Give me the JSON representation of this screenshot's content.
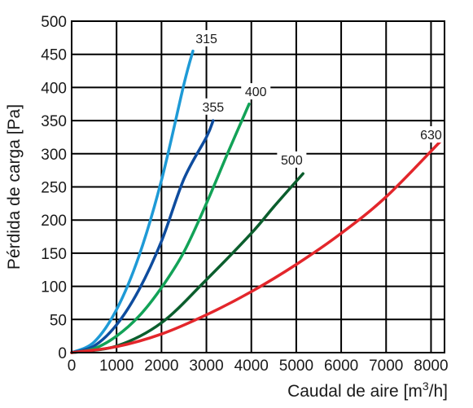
{
  "chart_data": {
    "type": "line",
    "xlabel": "Caudal de aire [m³/h]",
    "ylabel": "Pérdida de carga  [Pa]",
    "xlim": [
      0,
      8300
    ],
    "ylim": [
      0,
      500
    ],
    "x_ticks": [
      0,
      1000,
      2000,
      3000,
      4000,
      5000,
      6000,
      7000,
      8000
    ],
    "y_ticks": [
      0,
      50,
      100,
      150,
      200,
      250,
      300,
      350,
      400,
      450,
      500
    ],
    "grid": true,
    "series": [
      {
        "name": "315",
        "color": "#1e9ad6",
        "points": [
          [
            0,
            0
          ],
          [
            500,
            16
          ],
          [
            1000,
            65
          ],
          [
            1500,
            146
          ],
          [
            2000,
            260
          ],
          [
            2500,
            405
          ],
          [
            2700,
            455
          ]
        ]
      },
      {
        "name": "355",
        "color": "#0e4c9e",
        "points": [
          [
            0,
            0
          ],
          [
            500,
            10
          ],
          [
            1000,
            42
          ],
          [
            1500,
            95
          ],
          [
            2000,
            168
          ],
          [
            2500,
            262
          ],
          [
            3000,
            325
          ],
          [
            3150,
            350
          ]
        ]
      },
      {
        "name": "400",
        "color": "#12a257",
        "points": [
          [
            0,
            0
          ],
          [
            500,
            6
          ],
          [
            1000,
            25
          ],
          [
            1500,
            55
          ],
          [
            2000,
            98
          ],
          [
            2500,
            152
          ],
          [
            3000,
            225
          ],
          [
            3500,
            305
          ],
          [
            3950,
            375
          ]
        ]
      },
      {
        "name": "500",
        "color": "#0b5e2d",
        "points": [
          [
            0,
            0
          ],
          [
            1000,
            10
          ],
          [
            2000,
            45
          ],
          [
            3000,
            110
          ],
          [
            4000,
            180
          ],
          [
            4500,
            220
          ],
          [
            5150,
            270
          ]
        ]
      },
      {
        "name": "630",
        "color": "#e3262b",
        "points": [
          [
            0,
            0
          ],
          [
            1000,
            9
          ],
          [
            2000,
            28
          ],
          [
            3000,
            57
          ],
          [
            4000,
            92
          ],
          [
            5000,
            133
          ],
          [
            6000,
            180
          ],
          [
            7000,
            235
          ],
          [
            8200,
            318
          ]
        ]
      }
    ],
    "series_labels": [
      {
        "text": "315",
        "x": 3000,
        "y": 473
      },
      {
        "text": "355",
        "x": 3150,
        "y": 370
      },
      {
        "text": "400",
        "x": 4100,
        "y": 393
      },
      {
        "text": "500",
        "x": 4900,
        "y": 290
      },
      {
        "text": "630",
        "x": 8000,
        "y": 328
      }
    ]
  }
}
